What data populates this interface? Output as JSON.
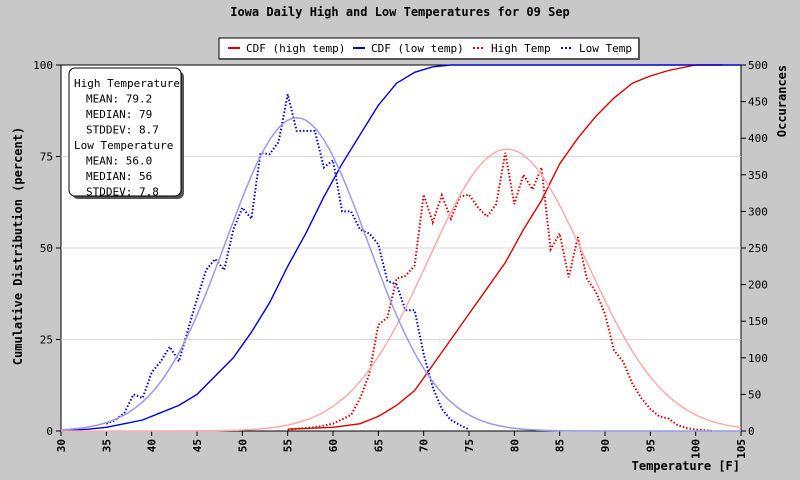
{
  "chart_data": {
    "type": "line",
    "title": "Iowa Daily High and Low Temperatures for 09 Sep",
    "xlabel": "Temperature [F]",
    "ylabel": "Cumulative Distribution (percent)",
    "ylabel2": "Occurances",
    "xlim": [
      30,
      105
    ],
    "ylim": [
      0,
      100
    ],
    "ylim2": [
      0,
      500
    ],
    "xticks": [
      30,
      35,
      40,
      45,
      50,
      55,
      60,
      65,
      70,
      75,
      80,
      85,
      90,
      95,
      100,
      105
    ],
    "yticks": [
      0,
      25,
      50,
      75,
      100
    ],
    "yticks2": [
      0,
      50,
      100,
      150,
      200,
      250,
      300,
      350,
      400,
      450,
      500
    ],
    "legend": {
      "position": "top",
      "items": [
        {
          "label": "CDF (high temp)",
          "color": "#dd0000",
          "style": "solid"
        },
        {
          "label": "CDF (low temp)",
          "color": "#0000dd",
          "style": "solid"
        },
        {
          "label": "High Temp",
          "color": "#dd0000",
          "style": "dotted"
        },
        {
          "label": "Low Temp",
          "color": "#0000dd",
          "style": "dotted"
        }
      ]
    },
    "stats_box": [
      "High Temperature",
      "MEAN: 79.2",
      "MEDIAN: 79",
      "STDDEV: 8.7",
      "Low Temperature",
      "MEAN: 56.0",
      "MEDIAN: 56",
      "STDDEV: 7.8"
    ],
    "series": [
      {
        "name": "CDF (high temp)",
        "axis": "left",
        "color": "#dd0000",
        "style": "solid",
        "x": [
          55,
          60,
          63,
          65,
          67,
          69,
          71,
          73,
          75,
          77,
          79,
          81,
          83,
          85,
          87,
          89,
          91,
          93,
          95,
          97,
          100,
          103
        ],
        "y": [
          0.5,
          1,
          2,
          4,
          7,
          11,
          18,
          25,
          32,
          39,
          46,
          55,
          63,
          73,
          80,
          86,
          91,
          95,
          97,
          98.5,
          100,
          100
        ]
      },
      {
        "name": "CDF (low temp)",
        "axis": "left",
        "color": "#0000dd",
        "style": "solid",
        "x": [
          30,
          33,
          35,
          37,
          39,
          41,
          43,
          45,
          47,
          49,
          51,
          53,
          55,
          57,
          59,
          61,
          63,
          65,
          67,
          69,
          71,
          73,
          75,
          80,
          105
        ],
        "y": [
          0,
          0.5,
          1,
          2,
          3,
          5,
          7,
          10,
          15,
          20,
          27,
          35,
          45,
          54,
          64,
          73,
          81,
          89,
          95,
          98,
          99.5,
          100,
          100,
          100,
          100
        ]
      },
      {
        "name": "High Temp",
        "axis": "right",
        "color": "#dd0000",
        "style": "dotted",
        "x": [
          55,
          58,
          60,
          62,
          63,
          64,
          65,
          66,
          67,
          68,
          69,
          70,
          71,
          72,
          73,
          74,
          75,
          76,
          77,
          78,
          79,
          80,
          81,
          82,
          83,
          84,
          85,
          86,
          87,
          88,
          89,
          90,
          91,
          92,
          93,
          94,
          95,
          96,
          97,
          98,
          99,
          100,
          101,
          102
        ],
        "y": [
          2,
          5,
          10,
          22,
          45,
          78,
          145,
          155,
          208,
          212,
          226,
          323,
          285,
          322,
          290,
          320,
          323,
          305,
          293,
          310,
          380,
          310,
          350,
          330,
          360,
          248,
          270,
          210,
          265,
          208,
          190,
          160,
          110,
          95,
          65,
          45,
          30,
          20,
          17,
          8,
          4,
          2,
          1,
          0
        ]
      },
      {
        "name": "Low Temp",
        "axis": "right",
        "color": "#0000dd",
        "style": "dotted",
        "x": [
          35,
          36,
          37,
          38,
          39,
          40,
          41,
          42,
          43,
          44,
          45,
          46,
          47,
          48,
          49,
          50,
          51,
          52,
          53,
          54,
          55,
          56,
          57,
          58,
          59,
          60,
          61,
          62,
          63,
          64,
          65,
          66,
          67,
          68,
          69,
          70,
          71,
          72,
          73,
          74,
          75
        ],
        "y": [
          10,
          15,
          25,
          50,
          45,
          80,
          95,
          115,
          95,
          138,
          180,
          220,
          235,
          220,
          275,
          305,
          290,
          380,
          378,
          395,
          460,
          410,
          410,
          410,
          360,
          370,
          300,
          300,
          275,
          270,
          255,
          205,
          200,
          165,
          165,
          105,
          60,
          30,
          15,
          8,
          2
        ]
      },
      {
        "name": "",
        "axis": "right",
        "color": "#ffaaaa",
        "style": "smooth",
        "mean": 79.2,
        "sd": 8.7,
        "peak": 385
      },
      {
        "name": "",
        "axis": "right",
        "color": "#9999ee",
        "style": "smooth",
        "mean": 56.0,
        "sd": 7.8,
        "peak": 428
      }
    ]
  }
}
